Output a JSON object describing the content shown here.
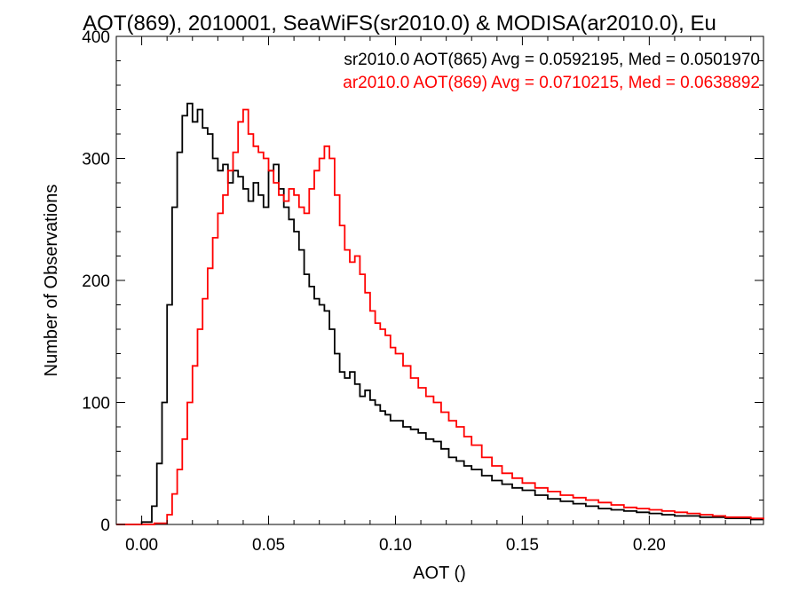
{
  "chart_data": {
    "type": "line",
    "step": true,
    "title": "AOT(869), 2010001, SeaWiFS(sr2010.0) & MODISA(ar2010.0), Eu",
    "xlabel": "AOT ()",
    "ylabel": "Number of Observations",
    "xlim": [
      -0.01,
      0.245
    ],
    "ylim": [
      0,
      400
    ],
    "xticks": [
      0.0,
      0.05,
      0.1,
      0.15,
      0.2
    ],
    "xtick_labels": [
      "0.00",
      "0.05",
      "0.10",
      "0.15",
      "0.20"
    ],
    "yticks": [
      0,
      100,
      200,
      300,
      400
    ],
    "ytick_labels": [
      "0",
      "100",
      "200",
      "300",
      "400"
    ],
    "grid": false,
    "legend_position": "top-right",
    "series": [
      {
        "label": "sr2010.0 AOT(865) Avg = 0.0592195, Med = 0.0501970",
        "color": "#000000",
        "x": [
          -0.01,
          0.0,
          0.004,
          0.006,
          0.008,
          0.01,
          0.012,
          0.014,
          0.016,
          0.018,
          0.02,
          0.022,
          0.024,
          0.026,
          0.028,
          0.03,
          0.032,
          0.034,
          0.036,
          0.038,
          0.04,
          0.042,
          0.044,
          0.046,
          0.048,
          0.05,
          0.052,
          0.054,
          0.056,
          0.058,
          0.06,
          0.062,
          0.064,
          0.066,
          0.068,
          0.07,
          0.072,
          0.074,
          0.076,
          0.078,
          0.08,
          0.082,
          0.084,
          0.086,
          0.088,
          0.09,
          0.092,
          0.094,
          0.096,
          0.098,
          0.1,
          0.103,
          0.106,
          0.109,
          0.112,
          0.115,
          0.118,
          0.121,
          0.124,
          0.127,
          0.13,
          0.134,
          0.138,
          0.142,
          0.146,
          0.15,
          0.155,
          0.16,
          0.165,
          0.17,
          0.175,
          0.18,
          0.185,
          0.19,
          0.195,
          0.2,
          0.205,
          0.21,
          0.215,
          0.22,
          0.225,
          0.23,
          0.235,
          0.24,
          0.245
        ],
        "values": [
          0,
          2,
          15,
          50,
          100,
          180,
          260,
          305,
          335,
          345,
          330,
          340,
          325,
          320,
          300,
          290,
          295,
          280,
          290,
          285,
          275,
          265,
          280,
          270,
          260,
          290,
          295,
          275,
          260,
          250,
          240,
          225,
          205,
          195,
          185,
          180,
          175,
          160,
          140,
          125,
          120,
          125,
          115,
          105,
          110,
          102,
          98,
          93,
          90,
          85,
          85,
          80,
          78,
          75,
          70,
          68,
          62,
          55,
          52,
          48,
          45,
          40,
          36,
          33,
          30,
          28,
          24,
          21,
          19,
          17,
          15,
          13,
          12,
          11,
          10,
          9,
          8,
          7,
          7,
          6,
          6,
          5,
          5,
          4,
          4
        ]
      },
      {
        "label": "ar2010.0 AOT(869) Avg = 0.0710215, Med = 0.0638892",
        "color": "#ff0000",
        "x": [
          -0.01,
          0.005,
          0.01,
          0.012,
          0.014,
          0.016,
          0.018,
          0.02,
          0.022,
          0.024,
          0.026,
          0.028,
          0.03,
          0.032,
          0.034,
          0.036,
          0.038,
          0.04,
          0.042,
          0.044,
          0.046,
          0.048,
          0.05,
          0.052,
          0.054,
          0.056,
          0.058,
          0.06,
          0.062,
          0.064,
          0.066,
          0.068,
          0.07,
          0.072,
          0.074,
          0.076,
          0.078,
          0.08,
          0.082,
          0.084,
          0.086,
          0.088,
          0.09,
          0.092,
          0.094,
          0.096,
          0.098,
          0.1,
          0.103,
          0.106,
          0.109,
          0.112,
          0.115,
          0.118,
          0.121,
          0.124,
          0.127,
          0.13,
          0.134,
          0.138,
          0.142,
          0.146,
          0.15,
          0.155,
          0.16,
          0.165,
          0.17,
          0.175,
          0.18,
          0.185,
          0.19,
          0.195,
          0.2,
          0.205,
          0.21,
          0.215,
          0.22,
          0.225,
          0.23,
          0.235,
          0.24,
          0.245
        ],
        "values": [
          0,
          1,
          8,
          25,
          45,
          70,
          100,
          130,
          160,
          185,
          210,
          235,
          255,
          270,
          290,
          305,
          330,
          340,
          320,
          310,
          305,
          300,
          290,
          280,
          270,
          265,
          275,
          270,
          260,
          255,
          275,
          290,
          300,
          310,
          300,
          270,
          245,
          225,
          215,
          220,
          205,
          190,
          175,
          165,
          160,
          155,
          145,
          140,
          130,
          120,
          112,
          105,
          100,
          92,
          85,
          80,
          72,
          65,
          55,
          48,
          42,
          38,
          34,
          30,
          27,
          24,
          22,
          20,
          18,
          16,
          14,
          13,
          12,
          11,
          10,
          9,
          8,
          7,
          6,
          6,
          5,
          4
        ]
      }
    ]
  }
}
